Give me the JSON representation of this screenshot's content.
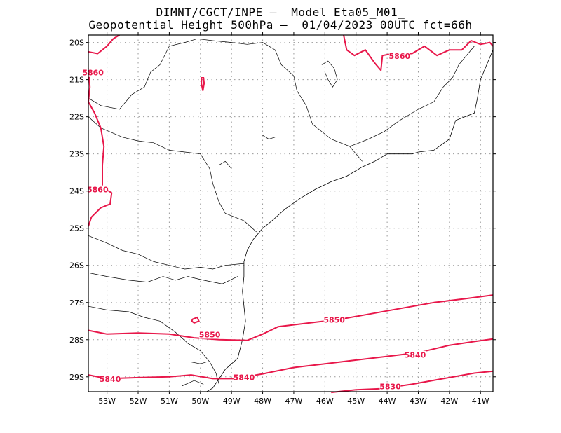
{
  "title": {
    "line1": "DIMNT/CGCT/INPE –  Model Eta05_M01_",
    "line2": "Geopotential Height 500hPa –  01/04/2023 00UTC fct=66h"
  },
  "map": {
    "lon_range": [
      -53.6,
      -40.6
    ],
    "lat_range": [
      -29.4,
      -19.8
    ],
    "lat_ticks": [
      {
        "lat": -20,
        "label": "20S"
      },
      {
        "lat": -21,
        "label": "21S"
      },
      {
        "lat": -22,
        "label": "22S"
      },
      {
        "lat": -23,
        "label": "23S"
      },
      {
        "lat": -24,
        "label": "24S"
      },
      {
        "lat": -25,
        "label": "25S"
      },
      {
        "lat": -26,
        "label": "26S"
      },
      {
        "lat": -27,
        "label": "27S"
      },
      {
        "lat": -28,
        "label": "28S"
      },
      {
        "lat": -29,
        "label": "29S"
      }
    ],
    "lon_ticks": [
      {
        "lon": -53,
        "label": "53W"
      },
      {
        "lon": -52,
        "label": "52W"
      },
      {
        "lon": -51,
        "label": "51W"
      },
      {
        "lon": -50,
        "label": "50W"
      },
      {
        "lon": -49,
        "label": "49W"
      },
      {
        "lon": -48,
        "label": "48W"
      },
      {
        "lon": -47,
        "label": "47W"
      },
      {
        "lon": -46,
        "label": "46W"
      },
      {
        "lon": -45,
        "label": "45W"
      },
      {
        "lon": -44,
        "label": "44W"
      },
      {
        "lon": -43,
        "label": "43W"
      },
      {
        "lon": -42,
        "label": "42W"
      },
      {
        "lon": -41,
        "label": "41W"
      }
    ],
    "grid": true,
    "contour_color": "#e8174a",
    "border_color": "#000000"
  },
  "contours": [
    {
      "value": 5860,
      "labels": [
        {
          "text": "5860",
          "lon": -53.45,
          "lat": -20.85
        },
        {
          "text": "5860",
          "lon": -53.3,
          "lat": -24.0
        },
        {
          "text": "5860",
          "lon": -43.6,
          "lat": -20.4
        }
      ],
      "lines": [
        [
          [
            -53.6,
            -20.25
          ],
          [
            -53.3,
            -20.3
          ],
          [
            -53.0,
            -20.1
          ],
          [
            -52.8,
            -19.9
          ],
          [
            -52.6,
            -19.8
          ]
        ],
        [
          [
            -53.6,
            -20.7
          ],
          [
            -53.55,
            -21.2
          ],
          [
            -53.6,
            -21.6
          ],
          [
            -53.4,
            -21.9
          ],
          [
            -53.2,
            -22.3
          ],
          [
            -53.1,
            -22.8
          ],
          [
            -53.15,
            -23.3
          ],
          [
            -53.15,
            -23.9
          ],
          [
            -52.85,
            -24.05
          ],
          [
            -52.9,
            -24.35
          ],
          [
            -53.2,
            -24.45
          ],
          [
            -53.5,
            -24.7
          ],
          [
            -53.6,
            -24.95
          ]
        ],
        [
          [
            -45.4,
            -19.8
          ],
          [
            -45.3,
            -20.2
          ],
          [
            -45.05,
            -20.35
          ],
          [
            -44.7,
            -20.2
          ],
          [
            -44.4,
            -20.55
          ],
          [
            -44.2,
            -20.75
          ],
          [
            -44.15,
            -20.35
          ],
          [
            -43.8,
            -20.3
          ],
          [
            -43.2,
            -20.3
          ],
          [
            -42.8,
            -20.1
          ],
          [
            -42.4,
            -20.35
          ],
          [
            -42.0,
            -20.2
          ],
          [
            -41.6,
            -20.2
          ],
          [
            -41.3,
            -19.95
          ],
          [
            -41.0,
            -20.05
          ],
          [
            -40.7,
            -20.0
          ],
          [
            -40.6,
            -20.1
          ]
        ]
      ],
      "rings": [
        [
          [
            -49.96,
            -20.95
          ],
          [
            -49.9,
            -20.95
          ],
          [
            -49.88,
            -21.1
          ],
          [
            -49.92,
            -21.3
          ],
          [
            -49.97,
            -21.1
          ]
        ]
      ]
    },
    {
      "value": 5850,
      "labels": [
        {
          "text": "5850",
          "lon": -49.7,
          "lat": -27.9
        },
        {
          "text": "5850",
          "lon": -45.7,
          "lat": -27.5
        }
      ],
      "lines": [
        [
          [
            -53.6,
            -27.75
          ],
          [
            -53.0,
            -27.85
          ],
          [
            -52.0,
            -27.82
          ],
          [
            -51.0,
            -27.85
          ],
          [
            -50.2,
            -27.95
          ],
          [
            -49.4,
            -28.0
          ],
          [
            -48.5,
            -28.02
          ],
          [
            -48.0,
            -27.85
          ],
          [
            -47.5,
            -27.65
          ],
          [
            -46.5,
            -27.55
          ],
          [
            -45.5,
            -27.45
          ],
          [
            -44.5,
            -27.3
          ],
          [
            -43.5,
            -27.15
          ],
          [
            -42.5,
            -27.0
          ],
          [
            -41.5,
            -26.9
          ],
          [
            -40.6,
            -26.8
          ]
        ]
      ],
      "rings": [
        [
          [
            -50.25,
            -27.45
          ],
          [
            -50.1,
            -27.4
          ],
          [
            -50.05,
            -27.5
          ],
          [
            -50.2,
            -27.55
          ],
          [
            -50.28,
            -27.5
          ]
        ]
      ]
    },
    {
      "value": 5840,
      "labels": [
        {
          "text": "5840",
          "lon": -52.9,
          "lat": -29.1
        },
        {
          "text": "5840",
          "lon": -48.6,
          "lat": -29.05
        },
        {
          "text": "5840",
          "lon": -43.1,
          "lat": -28.45
        }
      ],
      "lines": [
        [
          [
            -53.6,
            -28.95
          ],
          [
            -53.0,
            -29.05
          ],
          [
            -52.0,
            -29.02
          ],
          [
            -51.0,
            -29.0
          ],
          [
            -50.3,
            -28.95
          ],
          [
            -49.6,
            -29.05
          ],
          [
            -48.9,
            -29.05
          ],
          [
            -48.0,
            -28.92
          ],
          [
            -47.0,
            -28.75
          ],
          [
            -46.0,
            -28.65
          ],
          [
            -45.0,
            -28.55
          ],
          [
            -44.0,
            -28.45
          ],
          [
            -43.0,
            -28.35
          ],
          [
            -42.0,
            -28.15
          ],
          [
            -41.2,
            -28.05
          ],
          [
            -40.6,
            -27.98
          ]
        ]
      ],
      "rings": []
    },
    {
      "value": 5830,
      "labels": [
        {
          "text": "5830",
          "lon": -43.9,
          "lat": -29.3
        }
      ],
      "lines": [
        [
          [
            -45.8,
            -29.42
          ],
          [
            -45.0,
            -29.35
          ],
          [
            -44.2,
            -29.32
          ],
          [
            -43.2,
            -29.2
          ],
          [
            -42.2,
            -29.05
          ],
          [
            -41.2,
            -28.9
          ],
          [
            -40.6,
            -28.85
          ]
        ]
      ],
      "rings": []
    }
  ],
  "borders": [
    [
      [
        -53.6,
        -22.0
      ],
      [
        -53.2,
        -22.3
      ],
      [
        -52.5,
        -22.55
      ],
      [
        -52.0,
        -22.65
      ],
      [
        -51.5,
        -22.7
      ],
      [
        -51.0,
        -22.9
      ],
      [
        -50.5,
        -22.95
      ],
      [
        -50.0,
        -23.0
      ],
      [
        -49.7,
        -23.4
      ],
      [
        -49.6,
        -23.8
      ],
      [
        -49.4,
        -24.3
      ],
      [
        -49.2,
        -24.6
      ],
      [
        -48.6,
        -24.8
      ],
      [
        -48.2,
        -25.1
      ]
    ],
    [
      [
        -53.6,
        -21.5
      ],
      [
        -53.2,
        -21.7
      ],
      [
        -52.6,
        -21.8
      ],
      [
        -52.2,
        -21.4
      ],
      [
        -51.8,
        -21.2
      ],
      [
        -51.6,
        -20.8
      ],
      [
        -51.3,
        -20.6
      ],
      [
        -51.0,
        -20.1
      ],
      [
        -50.5,
        -20.0
      ],
      [
        -50.1,
        -19.9
      ],
      [
        -49.6,
        -19.95
      ],
      [
        -49.0,
        -20.0
      ],
      [
        -48.5,
        -20.05
      ],
      [
        -48.0,
        -20.0
      ],
      [
        -47.6,
        -20.2
      ],
      [
        -47.4,
        -20.6
      ],
      [
        -47.0,
        -20.9
      ],
      [
        -46.9,
        -21.3
      ],
      [
        -46.6,
        -21.7
      ],
      [
        -46.4,
        -22.2
      ],
      [
        -45.8,
        -22.6
      ],
      [
        -45.2,
        -22.8
      ],
      [
        -44.8,
        -23.2
      ]
    ],
    [
      [
        -45.2,
        -22.8
      ],
      [
        -44.6,
        -22.6
      ],
      [
        -44.1,
        -22.4
      ],
      [
        -43.6,
        -22.1
      ],
      [
        -43.0,
        -21.8
      ],
      [
        -42.5,
        -21.6
      ],
      [
        -42.2,
        -21.2
      ],
      [
        -41.9,
        -20.95
      ],
      [
        -41.7,
        -20.6
      ],
      [
        -41.4,
        -20.3
      ],
      [
        -41.2,
        -20.1
      ]
    ],
    [
      [
        -53.6,
        -25.2
      ],
      [
        -53.0,
        -25.4
      ],
      [
        -52.5,
        -25.6
      ],
      [
        -52.0,
        -25.7
      ],
      [
        -51.5,
        -25.9
      ],
      [
        -51.0,
        -26.0
      ],
      [
        -50.5,
        -26.1
      ],
      [
        -50.0,
        -26.05
      ],
      [
        -49.6,
        -26.1
      ],
      [
        -49.2,
        -26.0
      ],
      [
        -48.6,
        -25.95
      ]
    ],
    [
      [
        -53.6,
        -26.2
      ],
      [
        -53.0,
        -26.3
      ],
      [
        -52.3,
        -26.4
      ],
      [
        -51.7,
        -26.45
      ],
      [
        -51.2,
        -26.3
      ],
      [
        -50.8,
        -26.4
      ],
      [
        -50.4,
        -26.3
      ],
      [
        -49.9,
        -26.4
      ],
      [
        -49.3,
        -26.5
      ],
      [
        -48.8,
        -26.3
      ]
    ],
    [
      [
        -53.6,
        -27.1
      ],
      [
        -53.0,
        -27.2
      ],
      [
        -52.3,
        -27.25
      ],
      [
        -51.8,
        -27.4
      ],
      [
        -51.3,
        -27.5
      ],
      [
        -50.8,
        -27.8
      ],
      [
        -50.4,
        -28.1
      ],
      [
        -50.0,
        -28.3
      ],
      [
        -49.7,
        -28.6
      ],
      [
        -49.5,
        -28.9
      ],
      [
        -49.4,
        -29.2
      ]
    ],
    [
      [
        -50.3,
        -28.6
      ],
      [
        -50.0,
        -28.65
      ],
      [
        -49.8,
        -28.6
      ]
    ],
    [
      [
        -50.6,
        -29.25
      ],
      [
        -50.2,
        -29.1
      ],
      [
        -49.9,
        -29.2
      ]
    ]
  ],
  "coast": [
    [
      [
        -40.6,
        -20.2
      ],
      [
        -40.8,
        -20.6
      ],
      [
        -41.0,
        -21.0
      ],
      [
        -41.1,
        -21.5
      ],
      [
        -41.2,
        -21.9
      ],
      [
        -41.8,
        -22.1
      ],
      [
        -42.0,
        -22.6
      ],
      [
        -42.5,
        -22.9
      ],
      [
        -43.0,
        -22.95
      ],
      [
        -43.2,
        -23.0
      ],
      [
        -43.6,
        -23.0
      ],
      [
        -44.0,
        -23.0
      ],
      [
        -44.4,
        -23.2
      ],
      [
        -44.8,
        -23.35
      ],
      [
        -45.3,
        -23.6
      ],
      [
        -45.8,
        -23.75
      ],
      [
        -46.3,
        -23.95
      ],
      [
        -46.8,
        -24.2
      ],
      [
        -47.3,
        -24.5
      ],
      [
        -47.7,
        -24.8
      ],
      [
        -48.0,
        -25.0
      ],
      [
        -48.3,
        -25.3
      ],
      [
        -48.5,
        -25.6
      ],
      [
        -48.6,
        -25.9
      ],
      [
        -48.6,
        -26.3
      ],
      [
        -48.65,
        -26.7
      ],
      [
        -48.6,
        -27.1
      ],
      [
        -48.55,
        -27.5
      ],
      [
        -48.65,
        -28.0
      ],
      [
        -48.8,
        -28.5
      ],
      [
        -49.2,
        -28.8
      ],
      [
        -49.6,
        -29.3
      ],
      [
        -49.8,
        -29.4
      ]
    ]
  ],
  "lakes": [
    [
      [
        -46.1,
        -20.6
      ],
      [
        -45.9,
        -20.5
      ],
      [
        -45.7,
        -20.7
      ],
      [
        -45.6,
        -21.0
      ],
      [
        -45.75,
        -21.2
      ],
      [
        -45.9,
        -21.0
      ],
      [
        -46.0,
        -20.8
      ]
    ],
    [
      [
        -48.0,
        -22.5
      ],
      [
        -47.8,
        -22.6
      ],
      [
        -47.6,
        -22.55
      ]
    ],
    [
      [
        -49.4,
        -23.3
      ],
      [
        -49.2,
        -23.2
      ],
      [
        -49.0,
        -23.4
      ]
    ]
  ]
}
